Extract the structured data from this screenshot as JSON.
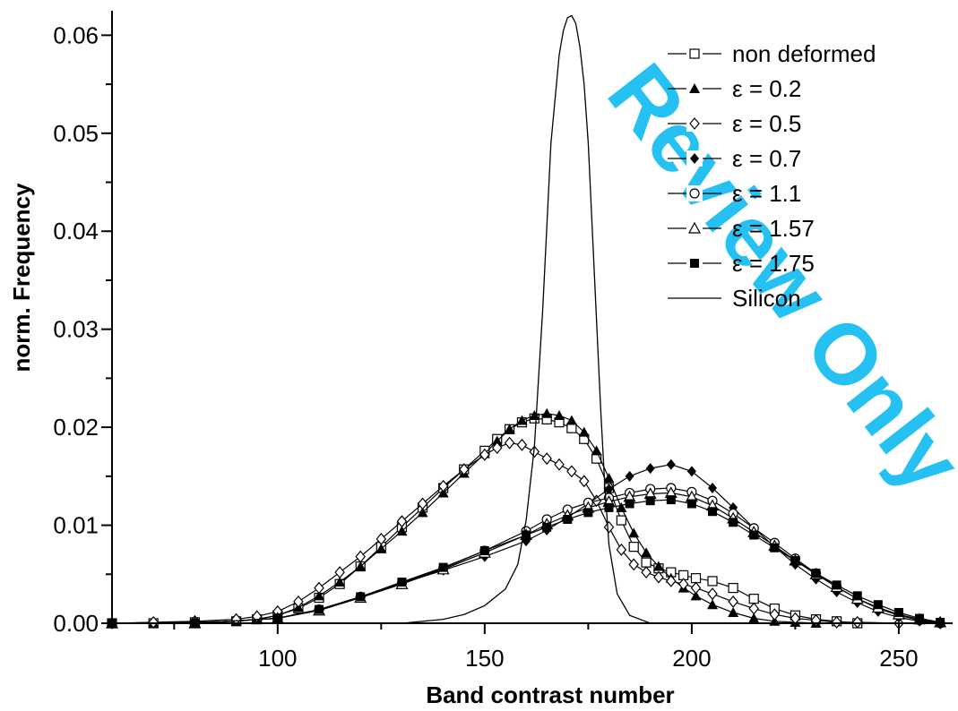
{
  "watermark": "Review Only",
  "chart_data": {
    "type": "line",
    "title": "",
    "xlabel": "Band contrast number",
    "ylabel": "norm. Frequency",
    "xlim": [
      60,
      263
    ],
    "ylim": [
      0,
      0.0625
    ],
    "x_ticks": [
      100,
      150,
      200,
      250
    ],
    "x_tick_labels": [
      "100",
      "150",
      "200",
      "250"
    ],
    "y_ticks": [
      0,
      0.01,
      0.02,
      0.03,
      0.04,
      0.05,
      0.06
    ],
    "y_tick_labels": [
      "0.00",
      "0.01",
      "0.02",
      "0.03",
      "0.04",
      "0.05",
      "0.06"
    ],
    "grid": false,
    "legend_position": "top-right",
    "series": [
      {
        "name": "non deformed",
        "marker": "square-open",
        "color": "#000000",
        "x": [
          60,
          70,
          80,
          90,
          95,
          100,
          105,
          110,
          115,
          120,
          125,
          130,
          135,
          140,
          145,
          150,
          153,
          156,
          159,
          162,
          165,
          168,
          171,
          174,
          177,
          180,
          183,
          186,
          189,
          192,
          195,
          198,
          201,
          205,
          210,
          215,
          220,
          225,
          230,
          235,
          240
        ],
        "y": [
          0,
          0,
          0.0001,
          0.0002,
          0.0004,
          0.0008,
          0.0015,
          0.0026,
          0.004,
          0.0058,
          0.0078,
          0.0098,
          0.0118,
          0.0138,
          0.0157,
          0.0176,
          0.0188,
          0.0198,
          0.0205,
          0.0209,
          0.0208,
          0.0205,
          0.0199,
          0.0188,
          0.0168,
          0.0138,
          0.0105,
          0.0078,
          0.0062,
          0.0056,
          0.0052,
          0.0049,
          0.0046,
          0.0043,
          0.0036,
          0.0025,
          0.0015,
          0.0008,
          0.0004,
          0.0002,
          0
        ]
      },
      {
        "name": "ε = 0.2",
        "marker": "triangle-filled",
        "color": "#000000",
        "x": [
          60,
          70,
          80,
          90,
          95,
          100,
          105,
          110,
          115,
          120,
          125,
          130,
          135,
          140,
          145,
          150,
          153,
          156,
          159,
          162,
          165,
          168,
          171,
          174,
          177,
          180,
          183,
          186,
          189,
          192,
          195,
          198,
          201,
          205,
          210,
          215,
          220,
          225,
          230
        ],
        "y": [
          0,
          0,
          0.0001,
          0.0002,
          0.0004,
          0.0008,
          0.0016,
          0.0028,
          0.0042,
          0.0058,
          0.0076,
          0.0094,
          0.0113,
          0.0133,
          0.0153,
          0.0173,
          0.0186,
          0.0198,
          0.0207,
          0.0212,
          0.0214,
          0.0212,
          0.0207,
          0.0195,
          0.0176,
          0.0148,
          0.0118,
          0.0092,
          0.0072,
          0.0058,
          0.0046,
          0.0036,
          0.0028,
          0.0019,
          0.0011,
          0.0005,
          0.0002,
          0.0001,
          0
        ]
      },
      {
        "name": "ε = 0.5",
        "marker": "diamond-open",
        "color": "#000000",
        "x": [
          60,
          70,
          80,
          90,
          95,
          100,
          105,
          110,
          115,
          120,
          125,
          130,
          135,
          140,
          145,
          150,
          153,
          156,
          159,
          162,
          165,
          168,
          171,
          174,
          177,
          180,
          183,
          186,
          189,
          192,
          195,
          198,
          201,
          205,
          210,
          215,
          220,
          225,
          230,
          235,
          240,
          250,
          260
        ],
        "y": [
          0,
          0.0001,
          0.0002,
          0.0004,
          0.0007,
          0.0012,
          0.0022,
          0.0036,
          0.0052,
          0.0068,
          0.0086,
          0.0104,
          0.0122,
          0.014,
          0.0157,
          0.0172,
          0.0179,
          0.0184,
          0.0182,
          0.0175,
          0.0168,
          0.0162,
          0.0155,
          0.0145,
          0.0125,
          0.0098,
          0.0075,
          0.006,
          0.0052,
          0.0047,
          0.0043,
          0.004,
          0.0036,
          0.003,
          0.0022,
          0.0015,
          0.0009,
          0.0005,
          0.0003,
          0.0001,
          0.0001,
          0,
          0
        ]
      },
      {
        "name": "ε = 0.7",
        "marker": "diamond-filled",
        "color": "#000000",
        "x": [
          60,
          80,
          100,
          110,
          120,
          130,
          140,
          150,
          160,
          165,
          170,
          175,
          180,
          185,
          190,
          195,
          200,
          205,
          210,
          215,
          220,
          225,
          230,
          235,
          240,
          245,
          250,
          255,
          260
        ],
        "y": [
          0,
          0,
          0.0005,
          0.0014,
          0.0027,
          0.0041,
          0.0054,
          0.0068,
          0.0084,
          0.0095,
          0.0108,
          0.0122,
          0.0137,
          0.015,
          0.0158,
          0.0162,
          0.0155,
          0.0138,
          0.0118,
          0.0097,
          0.0078,
          0.006,
          0.0045,
          0.0032,
          0.0021,
          0.0012,
          0.0006,
          0.0002,
          0
        ]
      },
      {
        "name": "ε = 1.1",
        "marker": "circle-open",
        "color": "#000000",
        "x": [
          60,
          80,
          100,
          110,
          120,
          130,
          140,
          150,
          160,
          165,
          170,
          175,
          180,
          185,
          190,
          195,
          200,
          205,
          210,
          215,
          220,
          225,
          230,
          235,
          240,
          245,
          250,
          255,
          260
        ],
        "y": [
          0,
          0,
          0.0005,
          0.0014,
          0.0027,
          0.0041,
          0.0056,
          0.0074,
          0.0094,
          0.0106,
          0.0116,
          0.0123,
          0.0128,
          0.0133,
          0.0137,
          0.0138,
          0.0134,
          0.0125,
          0.0112,
          0.0097,
          0.0082,
          0.0066,
          0.0051,
          0.0037,
          0.0025,
          0.0015,
          0.0008,
          0.0003,
          0
        ]
      },
      {
        "name": "ε = 1.57",
        "marker": "triangle-open",
        "color": "#000000",
        "x": [
          60,
          80,
          100,
          110,
          120,
          130,
          140,
          150,
          160,
          165,
          170,
          175,
          180,
          185,
          190,
          195,
          200,
          205,
          210,
          215,
          220,
          225,
          230,
          235,
          240,
          245,
          250,
          255,
          260
        ],
        "y": [
          0,
          0,
          0.0005,
          0.0013,
          0.0026,
          0.004,
          0.0055,
          0.0072,
          0.009,
          0.0101,
          0.011,
          0.0118,
          0.0124,
          0.0129,
          0.0132,
          0.0133,
          0.0129,
          0.012,
          0.0107,
          0.0093,
          0.0079,
          0.0064,
          0.005,
          0.0037,
          0.0025,
          0.0016,
          0.0009,
          0.0004,
          0.0001
        ]
      },
      {
        "name": "ε = 1.75",
        "marker": "square-filled",
        "color": "#000000",
        "x": [
          60,
          80,
          100,
          110,
          120,
          130,
          140,
          150,
          160,
          165,
          170,
          175,
          180,
          185,
          190,
          195,
          200,
          205,
          210,
          215,
          220,
          225,
          230,
          235,
          240,
          245,
          250,
          255,
          260
        ],
        "y": [
          0,
          0,
          0.0005,
          0.0014,
          0.0027,
          0.0042,
          0.0057,
          0.0074,
          0.009,
          0.0098,
          0.0106,
          0.0113,
          0.0118,
          0.0122,
          0.0125,
          0.0126,
          0.0122,
          0.0114,
          0.0103,
          0.009,
          0.0077,
          0.0064,
          0.0051,
          0.0039,
          0.0028,
          0.0019,
          0.0011,
          0.0005,
          0.0001
        ]
      },
      {
        "name": "Silicon",
        "marker": "none",
        "color": "#000000",
        "x": [
          60,
          130,
          140,
          145,
          150,
          155,
          158,
          160,
          162,
          164,
          166,
          168,
          169,
          170,
          171,
          172,
          173,
          174,
          175,
          176,
          177,
          178,
          179,
          180,
          182,
          185,
          190,
          263
        ],
        "y": [
          0,
          0,
          0.0004,
          0.0009,
          0.0018,
          0.0035,
          0.006,
          0.0105,
          0.018,
          0.032,
          0.049,
          0.058,
          0.0605,
          0.0618,
          0.062,
          0.0612,
          0.0588,
          0.055,
          0.049,
          0.04,
          0.031,
          0.022,
          0.014,
          0.008,
          0.003,
          0.0008,
          0,
          0
        ]
      }
    ]
  }
}
